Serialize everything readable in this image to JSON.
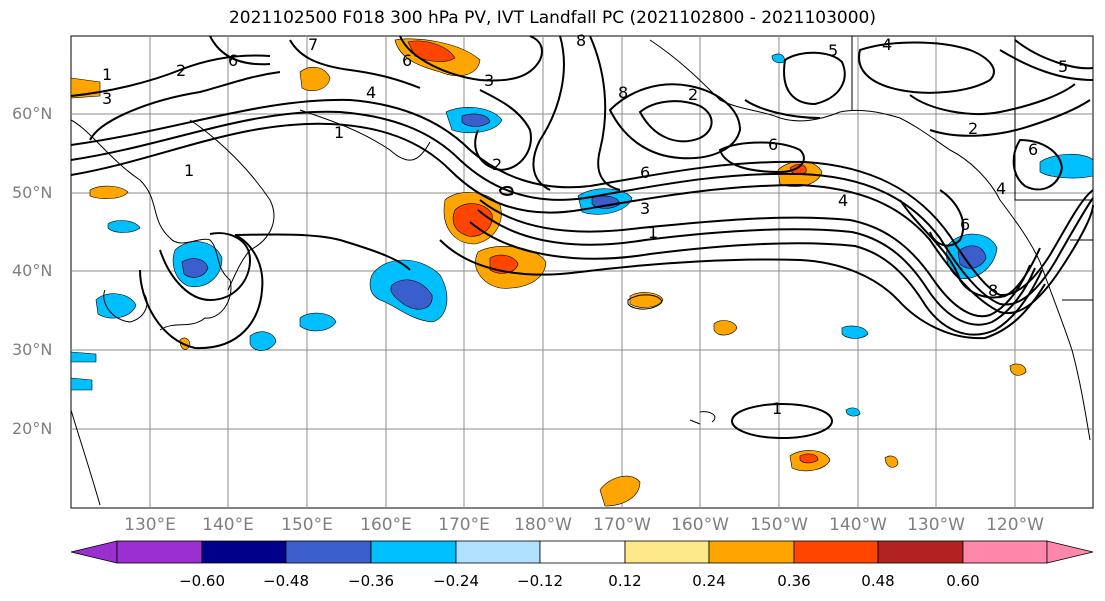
{
  "title": "2021102500 F018 300 hPa PV, IVT Landfall PC (2021102800 - 2021103000)",
  "lat_labels": [
    "60°N",
    "50°N",
    "40°N",
    "30°N",
    "20°N"
  ],
  "lon_labels": [
    "130°E",
    "140°E",
    "150°E",
    "160°E",
    "170°E",
    "180°W",
    "170°W",
    "160°W",
    "150°W",
    "140°W",
    "130°W",
    "120°W"
  ],
  "colorbar": {
    "ticks": [
      "−0.60",
      "−0.48",
      "−0.36",
      "−0.24",
      "−0.12",
      "0.12",
      "0.24",
      "0.36",
      "0.48",
      "0.60"
    ],
    "colors": [
      "#9b30d0",
      "#00008b",
      "#3a5fcd",
      "#00bfff",
      "#b0e0ff",
      "#ffffff",
      "#fde98a",
      "#ffa500",
      "#ff4500",
      "#b22222",
      "#ff88aa"
    ]
  },
  "contour_labels": [
    "1",
    "2",
    "3",
    "4",
    "5",
    "6",
    "7",
    "8"
  ]
}
